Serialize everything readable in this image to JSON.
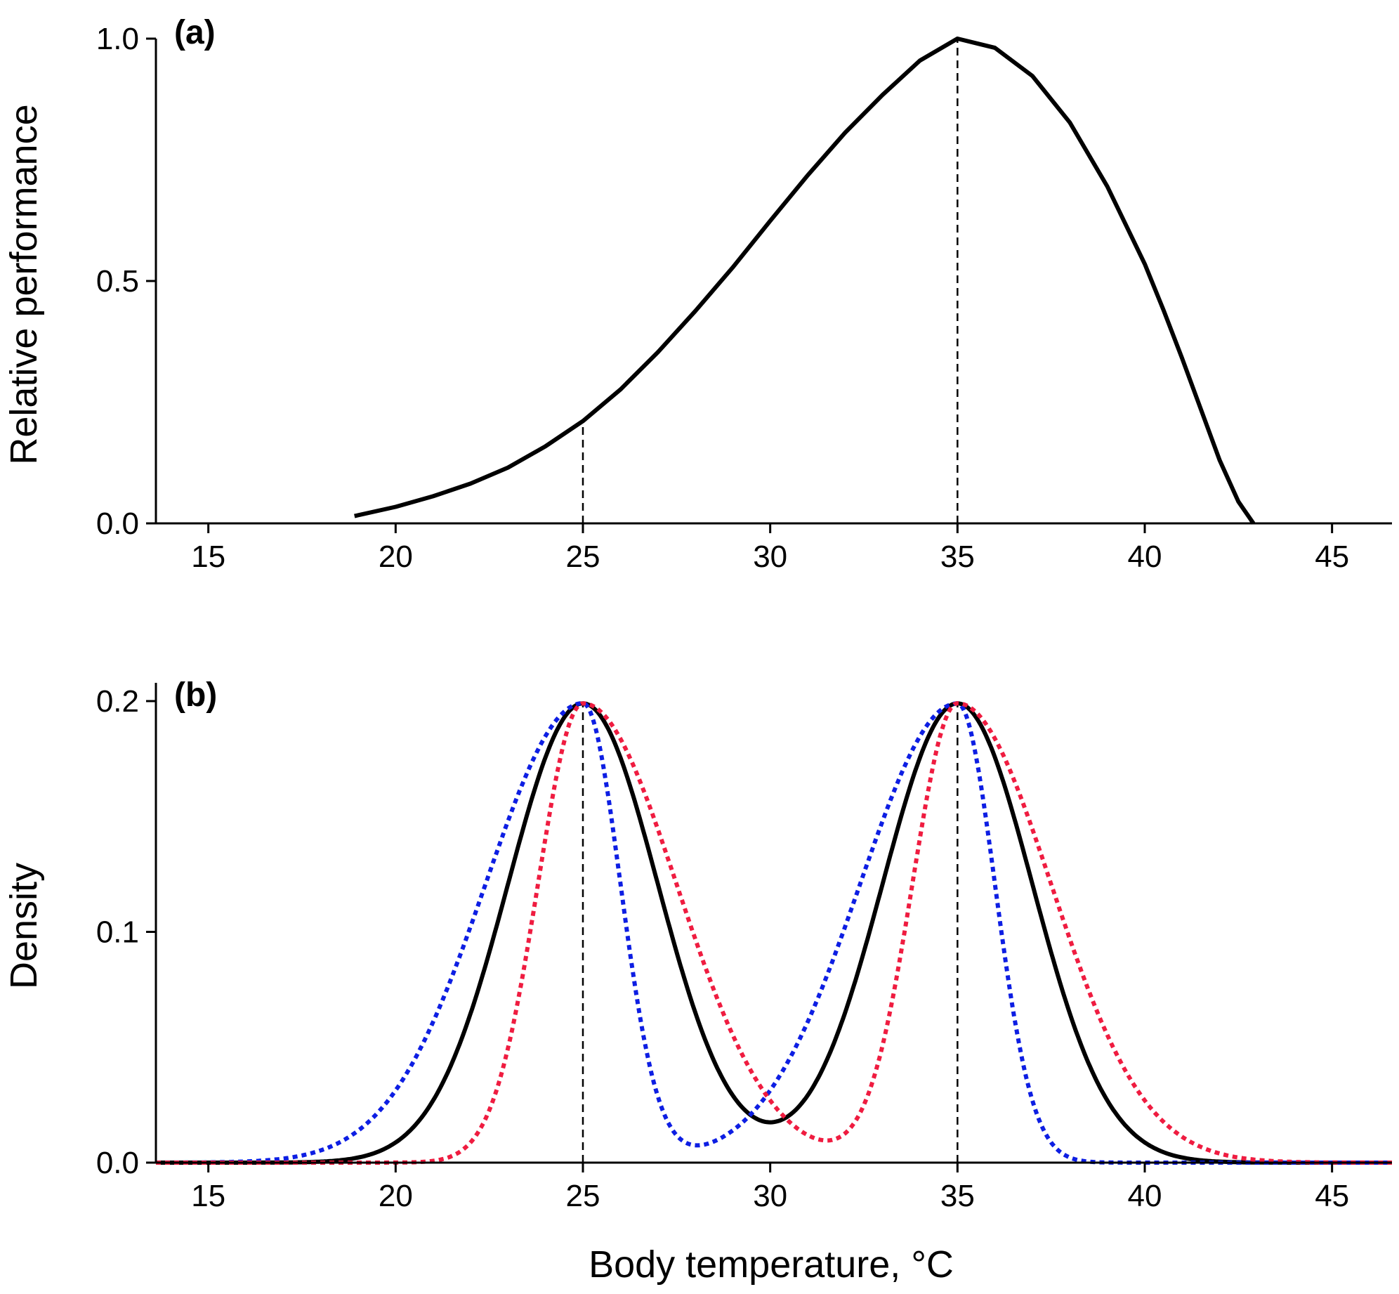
{
  "chart_data": [
    {
      "panel": "(a)",
      "type": "line",
      "xlabel": "",
      "ylabel": "Relative performance",
      "xlim": [
        13.6,
        46.6
      ],
      "ylim": [
        0,
        1.0
      ],
      "xticks": [
        15,
        20,
        25,
        30,
        35,
        40,
        45
      ],
      "yticks": [
        0.0,
        0.5,
        1.0
      ],
      "ytick_labels": [
        "0.0",
        "0.5",
        "1.0"
      ],
      "series": [
        {
          "color": "#000000",
          "style": "solid",
          "x": [
            18.9,
            20,
            21,
            22,
            23,
            24,
            25,
            26,
            27,
            28,
            29,
            30,
            31,
            32,
            33,
            34,
            35,
            36,
            37,
            38,
            39,
            40,
            40.5,
            41,
            41.5,
            42,
            42.5,
            42.9
          ],
          "y": [
            0.015,
            0.034,
            0.056,
            0.082,
            0.115,
            0.159,
            0.211,
            0.276,
            0.353,
            0.438,
            0.528,
            0.624,
            0.718,
            0.806,
            0.884,
            0.955,
            1.0,
            0.981,
            0.923,
            0.827,
            0.695,
            0.535,
            0.44,
            0.34,
            0.235,
            0.13,
            0.045,
            0.0
          ]
        }
      ],
      "vertical_reference_lines": [
        {
          "x": 25,
          "y_top": 0.211
        },
        {
          "x": 35,
          "y_top": 1.0
        }
      ],
      "grid": false
    },
    {
      "panel": "(b)",
      "type": "line",
      "xlabel": "Body temperature, °C",
      "ylabel": "Density",
      "xlim": [
        13.6,
        46.6
      ],
      "ylim": [
        0,
        0.2
      ],
      "xticks": [
        15,
        20,
        25,
        30,
        35,
        40,
        45
      ],
      "yticks": [
        0.0,
        0.1,
        0.2
      ],
      "ytick_labels": [
        "0.0",
        "0.1",
        "0.2"
      ],
      "series": [
        {
          "color": "#000000",
          "style": "solid",
          "x_range": [
            13.6,
            46.6
          ],
          "curves": [
            {
              "mode": 25,
              "left_sd": 2.0,
              "right_sd": 2.0,
              "peak": 0.199
            },
            {
              "mode": 35,
              "left_sd": 2.0,
              "right_sd": 2.0,
              "peak": 0.199
            }
          ]
        },
        {
          "color": "#0d1ee3",
          "style": "dotted",
          "x_range": [
            13.6,
            46.6
          ],
          "curves": [
            {
              "mode": 25,
              "left_sd": 2.6,
              "right_sd": 1.0,
              "peak": 0.199
            },
            {
              "mode": 35,
              "left_sd": 2.6,
              "right_sd": 1.0,
              "peak": 0.199
            }
          ]
        },
        {
          "color": "#ef1c40",
          "style": "dotted",
          "x_range": [
            13.6,
            46.6
          ],
          "curves": [
            {
              "mode": 25,
              "left_sd": 1.2,
              "right_sd": 2.5,
              "peak": 0.199
            },
            {
              "mode": 35,
              "left_sd": 1.2,
              "right_sd": 2.5,
              "peak": 0.199
            }
          ]
        }
      ],
      "vertical_reference_lines": [
        {
          "x": 25,
          "y_top": 0.199
        },
        {
          "x": 35,
          "y_top": 0.199
        }
      ],
      "grid": false
    }
  ]
}
